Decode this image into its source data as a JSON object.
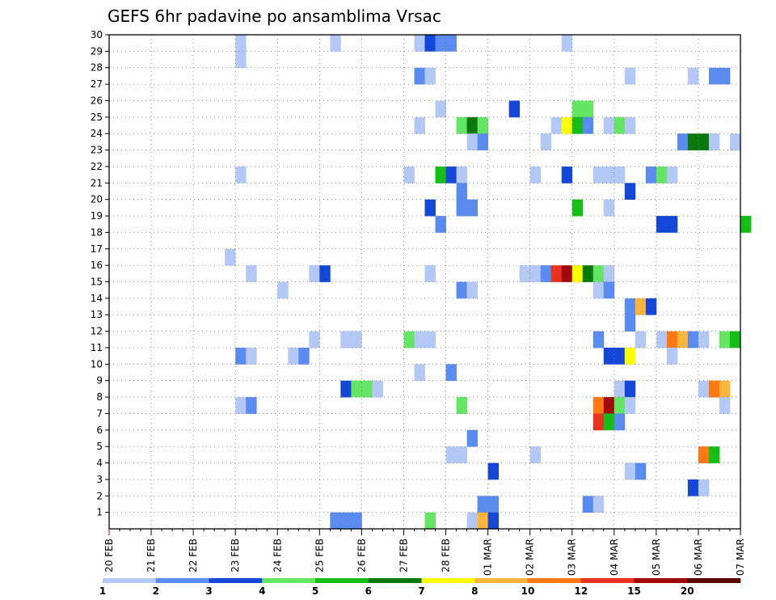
{
  "chart_data": {
    "type": "heatmap",
    "title": "GEFS 6hr padavine po ansamblima Vrsac",
    "xlabel": "",
    "ylabel": "",
    "y_tick_labels": [
      "1",
      "2",
      "3",
      "4",
      "5",
      "6",
      "7",
      "8",
      "9",
      "10",
      "11",
      "12",
      "13",
      "14",
      "15",
      "16",
      "17",
      "18",
      "19",
      "20",
      "21",
      "22",
      "23",
      "24",
      "25",
      "26",
      "27",
      "28",
      "29",
      "30"
    ],
    "x_tick_labels": [
      "20 FEB",
      "21 FEB",
      "22 FEB",
      "23 FEB",
      "24 FEB",
      "25 FEB",
      "26 FEB",
      "27 FEB",
      "28 FEB",
      "01 MAR",
      "02 MAR",
      "03 MAR",
      "04 MAR",
      "05 MAR",
      "06 MAR",
      "07 MAR"
    ],
    "x_unit": "6-hour step (4 per day) from 20 FEB 00Z",
    "ylim": [
      0,
      30
    ],
    "xlim": [
      0,
      60
    ],
    "grid": true,
    "colorbar": {
      "labels": [
        "1",
        "2",
        "3",
        "4",
        "5",
        "6",
        "7",
        "8",
        "10",
        "12",
        "15",
        "20"
      ],
      "colors": [
        "#b4c8f5",
        "#5a8cf0",
        "#1446d7",
        "#64e664",
        "#14be14",
        "#0a780a",
        "#ffff00",
        "#ffb43c",
        "#ff7814",
        "#e6321e",
        "#a00a0a",
        "#5a0000"
      ]
    },
    "cells": [
      [
        12,
        29,
        0
      ],
      [
        12,
        28,
        0
      ],
      [
        21,
        29,
        0
      ],
      [
        29,
        29,
        0
      ],
      [
        30,
        29,
        2
      ],
      [
        31,
        29,
        1
      ],
      [
        32,
        29,
        1
      ],
      [
        43,
        29,
        0
      ],
      [
        29,
        27,
        1
      ],
      [
        30,
        27,
        0
      ],
      [
        49,
        27,
        0
      ],
      [
        55,
        27,
        0
      ],
      [
        57,
        27,
        1
      ],
      [
        58,
        27,
        1
      ],
      [
        31,
        25,
        0
      ],
      [
        38,
        25,
        2
      ],
      [
        44,
        25,
        3
      ],
      [
        45,
        25,
        3
      ],
      [
        29,
        24,
        0
      ],
      [
        33,
        24,
        3
      ],
      [
        34,
        24,
        5
      ],
      [
        35,
        24,
        3
      ],
      [
        42,
        24,
        0
      ],
      [
        43,
        24,
        6
      ],
      [
        44,
        24,
        4
      ],
      [
        45,
        24,
        1
      ],
      [
        47,
        24,
        0
      ],
      [
        48,
        24,
        3
      ],
      [
        49,
        24,
        0
      ],
      [
        34,
        23,
        0
      ],
      [
        35,
        23,
        1
      ],
      [
        41,
        23,
        0
      ],
      [
        54,
        23,
        1
      ],
      [
        55,
        23,
        5
      ],
      [
        56,
        23,
        5
      ],
      [
        57,
        23,
        0
      ],
      [
        59,
        23,
        0
      ],
      [
        12,
        21,
        0
      ],
      [
        28,
        21,
        0
      ],
      [
        31,
        21,
        4
      ],
      [
        32,
        21,
        2
      ],
      [
        33,
        21,
        0
      ],
      [
        40,
        21,
        0
      ],
      [
        43,
        21,
        2
      ],
      [
        46,
        21,
        0
      ],
      [
        47,
        21,
        0
      ],
      [
        48,
        21,
        0
      ],
      [
        51,
        21,
        1
      ],
      [
        52,
        21,
        3
      ],
      [
        53,
        21,
        0
      ],
      [
        33,
        20,
        1
      ],
      [
        49,
        20,
        2
      ],
      [
        30,
        19,
        2
      ],
      [
        33,
        19,
        1
      ],
      [
        34,
        19,
        1
      ],
      [
        44,
        19,
        4
      ],
      [
        47,
        19,
        0
      ],
      [
        31,
        18,
        1
      ],
      [
        52,
        18,
        2
      ],
      [
        53,
        18,
        2
      ],
      [
        60,
        18,
        4
      ],
      [
        11,
        16,
        0
      ],
      [
        13,
        15,
        0
      ],
      [
        19,
        15,
        0
      ],
      [
        20,
        15,
        2
      ],
      [
        30,
        15,
        0
      ],
      [
        39,
        15,
        0
      ],
      [
        40,
        15,
        0
      ],
      [
        41,
        15,
        1
      ],
      [
        42,
        15,
        9
      ],
      [
        43,
        15,
        10
      ],
      [
        44,
        15,
        6
      ],
      [
        45,
        15,
        5
      ],
      [
        46,
        15,
        3
      ],
      [
        47,
        15,
        0
      ],
      [
        16,
        14,
        0
      ],
      [
        33,
        14,
        1
      ],
      [
        34,
        14,
        0
      ],
      [
        46,
        14,
        0
      ],
      [
        47,
        14,
        1
      ],
      [
        49,
        13,
        1
      ],
      [
        50,
        13,
        7
      ],
      [
        51,
        13,
        2
      ],
      [
        49,
        12,
        1
      ],
      [
        19,
        11,
        0
      ],
      [
        22,
        11,
        0
      ],
      [
        23,
        11,
        0
      ],
      [
        28,
        11,
        3
      ],
      [
        29,
        11,
        0
      ],
      [
        30,
        11,
        0
      ],
      [
        46,
        11,
        1
      ],
      [
        50,
        11,
        0
      ],
      [
        52,
        11,
        0
      ],
      [
        53,
        11,
        8
      ],
      [
        54,
        11,
        7
      ],
      [
        55,
        11,
        1
      ],
      [
        56,
        11,
        0
      ],
      [
        58,
        11,
        3
      ],
      [
        59,
        11,
        4
      ],
      [
        12,
        10,
        1
      ],
      [
        13,
        10,
        0
      ],
      [
        17,
        10,
        0
      ],
      [
        18,
        10,
        1
      ],
      [
        47,
        10,
        2
      ],
      [
        48,
        10,
        2
      ],
      [
        49,
        10,
        6
      ],
      [
        53,
        10,
        0
      ],
      [
        29,
        9,
        0
      ],
      [
        32,
        9,
        1
      ],
      [
        22,
        8,
        2
      ],
      [
        23,
        8,
        3
      ],
      [
        24,
        8,
        3
      ],
      [
        25,
        8,
        0
      ],
      [
        48,
        8,
        0
      ],
      [
        49,
        8,
        2
      ],
      [
        56,
        8,
        0
      ],
      [
        57,
        8,
        8
      ],
      [
        58,
        8,
        7
      ],
      [
        12,
        7,
        0
      ],
      [
        13,
        7,
        1
      ],
      [
        33,
        7,
        3
      ],
      [
        46,
        7,
        8
      ],
      [
        47,
        7,
        10
      ],
      [
        48,
        7,
        3
      ],
      [
        49,
        7,
        0
      ],
      [
        58,
        7,
        0
      ],
      [
        46,
        6,
        9
      ],
      [
        47,
        6,
        4
      ],
      [
        48,
        6,
        1
      ],
      [
        34,
        5,
        1
      ],
      [
        32,
        4,
        0
      ],
      [
        33,
        4,
        0
      ],
      [
        40,
        4,
        0
      ],
      [
        56,
        4,
        8
      ],
      [
        57,
        4,
        4
      ],
      [
        36,
        3,
        2
      ],
      [
        49,
        3,
        0
      ],
      [
        50,
        3,
        1
      ],
      [
        55,
        2,
        2
      ],
      [
        56,
        2,
        0
      ],
      [
        35,
        1,
        1
      ],
      [
        36,
        1,
        1
      ],
      [
        45,
        1,
        1
      ],
      [
        46,
        1,
        0
      ],
      [
        21,
        0,
        1
      ],
      [
        22,
        0,
        1
      ],
      [
        23,
        0,
        1
      ],
      [
        30,
        0,
        3
      ],
      [
        34,
        0,
        0
      ],
      [
        35,
        0,
        7
      ],
      [
        36,
        0,
        2
      ]
    ]
  }
}
